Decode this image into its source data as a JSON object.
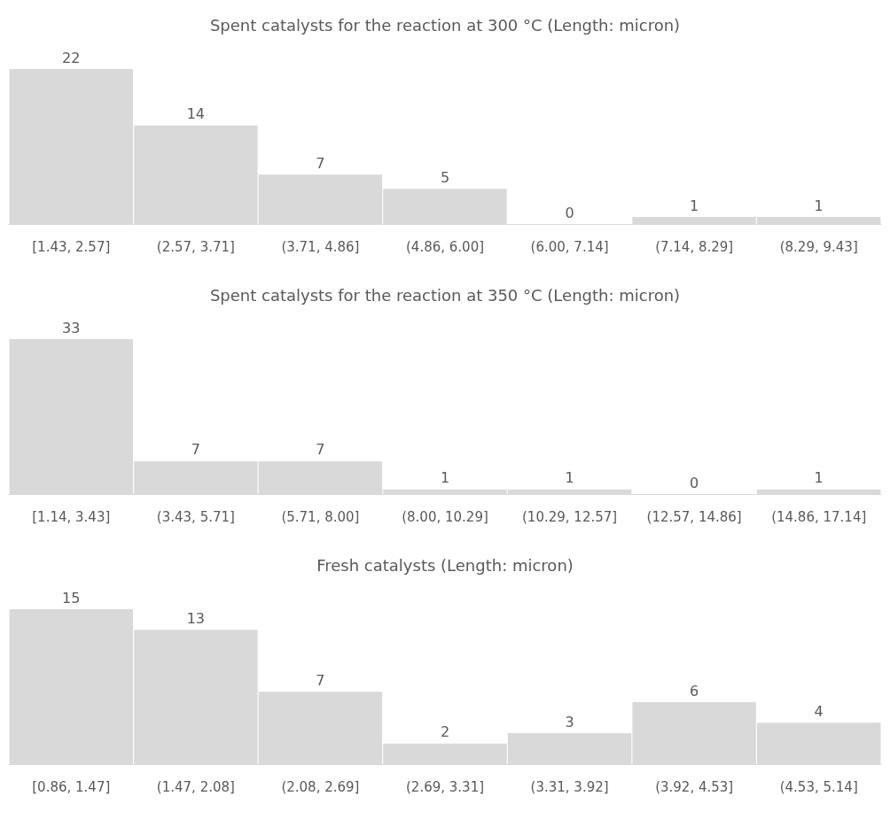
{
  "chart_data": [
    {
      "type": "bar",
      "title": "Spent catalysts for the reaction at 300 °C (Length: micron)",
      "categories": [
        "[1.43, 2.57]",
        "(2.57, 3.71]",
        "(3.71, 4.86]",
        "(4.86, 6.00]",
        "(6.00, 7.14]",
        "(7.14, 8.29]",
        "(8.29, 9.43]"
      ],
      "values": [
        22,
        14,
        7,
        5,
        0,
        1,
        1
      ],
      "color": "#d9d9d9",
      "data_labels": true
    },
    {
      "type": "bar",
      "title": "Spent catalysts for the reaction at 350 °C (Length: micron)",
      "categories": [
        "[1.14, 3.43]",
        "(3.43, 5.71]",
        "(5.71, 8.00]",
        "(8.00, 10.29]",
        "(10.29, 12.57]",
        "(12.57, 14.86]",
        "(14.86, 17.14]"
      ],
      "values": [
        33,
        7,
        7,
        1,
        1,
        0,
        1
      ],
      "color": "#d9d9d9",
      "data_labels": true
    },
    {
      "type": "bar",
      "title": "Fresh catalysts (Length: micron)",
      "categories": [
        "[0.86, 1.47]",
        "(1.47, 2.08]",
        "(2.08, 2.69]",
        "(2.69, 3.31]",
        "(3.31, 3.92]",
        "(3.92, 4.53]",
        "(4.53, 5.14]"
      ],
      "values": [
        15,
        13,
        7,
        2,
        3,
        6,
        4
      ],
      "color": "#d9d9d9",
      "data_labels": true
    }
  ]
}
